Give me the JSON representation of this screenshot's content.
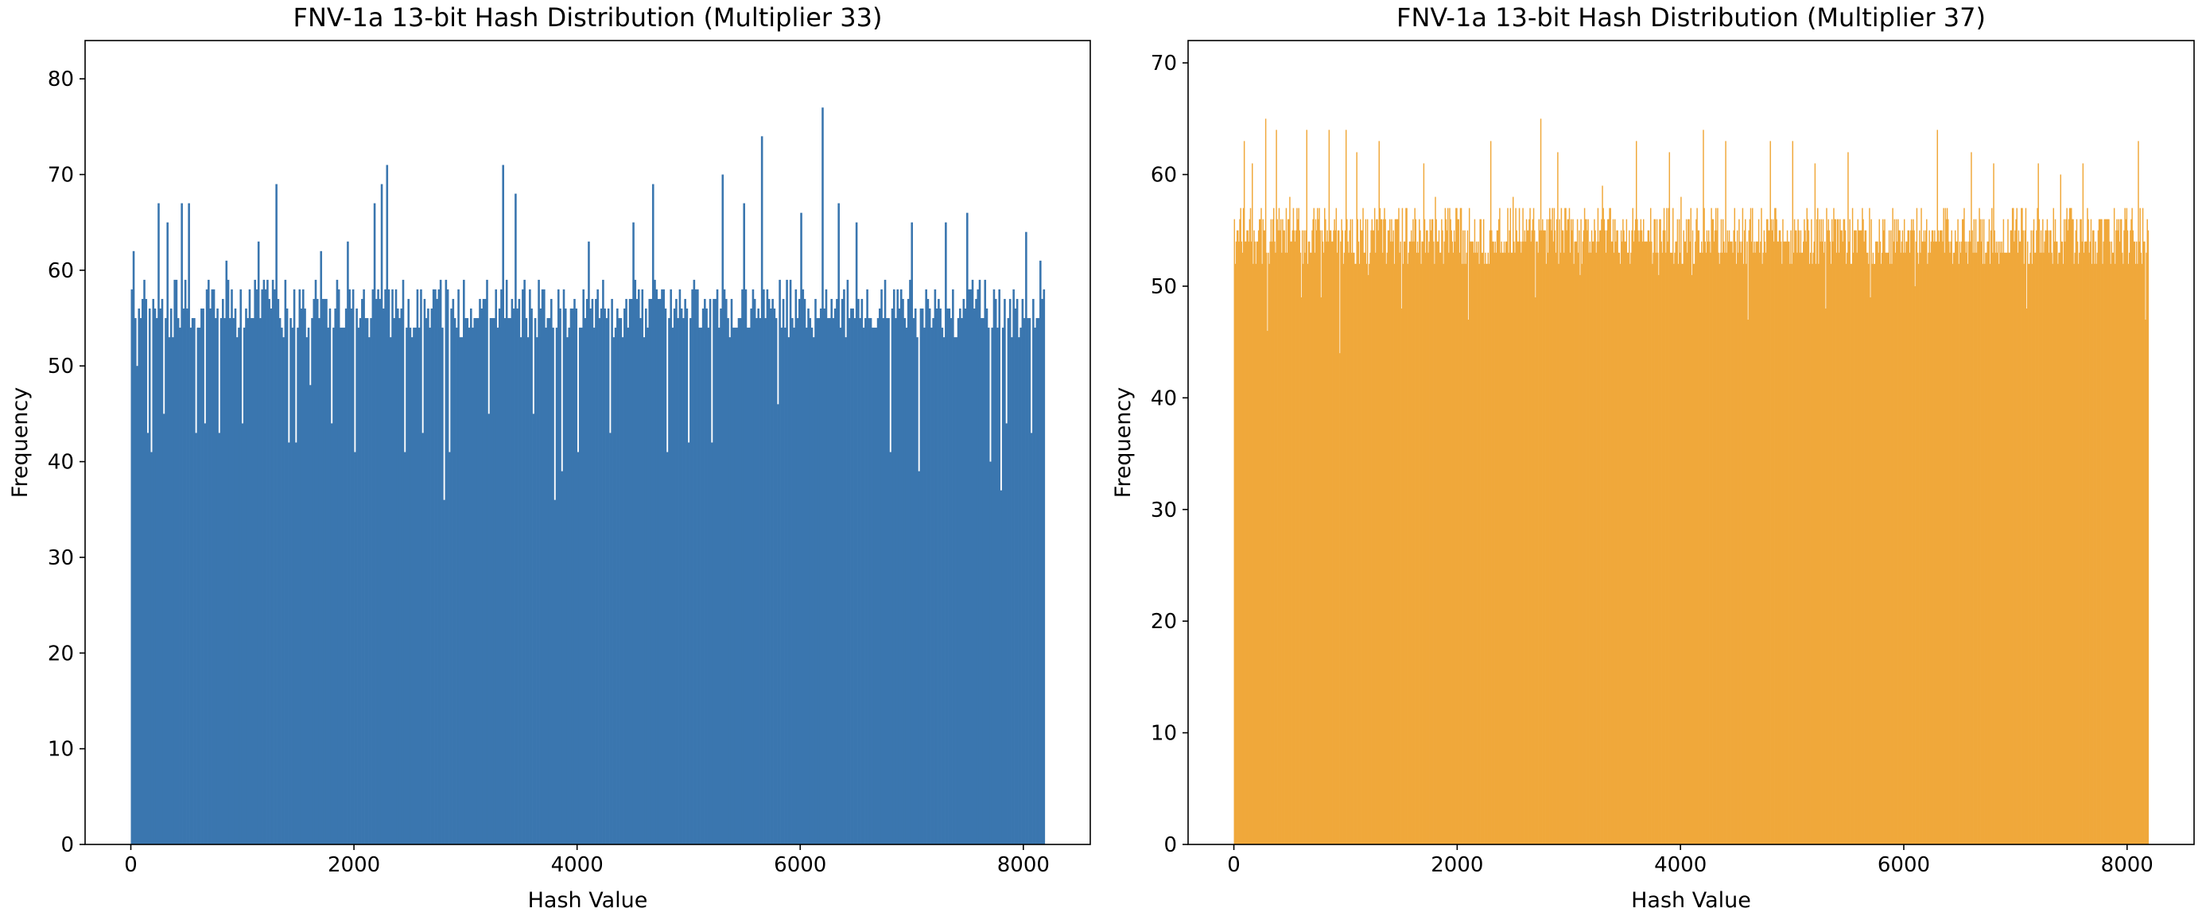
{
  "chart_data": [
    {
      "type": "bar",
      "title": "FNV-1a 13-bit Hash Distribution (Multiplier 33)",
      "xlabel": "Hash Value",
      "ylabel": "Frequency",
      "xlim": [
        -410,
        8600
      ],
      "ylim": [
        0,
        84
      ],
      "xticks": [
        0,
        2000,
        4000,
        6000,
        8000
      ],
      "yticks": [
        0,
        10,
        20,
        30,
        40,
        50,
        60,
        70,
        80
      ],
      "bin_range": [
        0,
        8191
      ],
      "bins": 512,
      "grid": false,
      "legend": false,
      "color": "#3a76af",
      "series": [
        {
          "baseline_range": [
            53,
            59
          ],
          "values_estimated": [
            {
              "x": 20,
              "y": 62
            },
            {
              "x": 60,
              "y": 50
            },
            {
              "x": 120,
              "y": 59
            },
            {
              "x": 150,
              "y": 43
            },
            {
              "x": 180,
              "y": 41
            },
            {
              "x": 240,
              "y": 67
            },
            {
              "x": 300,
              "y": 45
            },
            {
              "x": 330,
              "y": 65
            },
            {
              "x": 380,
              "y": 53
            },
            {
              "x": 460,
              "y": 67
            },
            {
              "x": 520,
              "y": 67
            },
            {
              "x": 580,
              "y": 43
            },
            {
              "x": 660,
              "y": 44
            },
            {
              "x": 720,
              "y": 58
            },
            {
              "x": 790,
              "y": 43
            },
            {
              "x": 860,
              "y": 61
            },
            {
              "x": 1000,
              "y": 44
            },
            {
              "x": 1140,
              "y": 63
            },
            {
              "x": 1300,
              "y": 69
            },
            {
              "x": 1420,
              "y": 42
            },
            {
              "x": 1480,
              "y": 42
            },
            {
              "x": 1600,
              "y": 48
            },
            {
              "x": 1700,
              "y": 62
            },
            {
              "x": 1800,
              "y": 44
            },
            {
              "x": 1940,
              "y": 63
            },
            {
              "x": 2000,
              "y": 41
            },
            {
              "x": 2180,
              "y": 67
            },
            {
              "x": 2250,
              "y": 69
            },
            {
              "x": 2300,
              "y": 71
            },
            {
              "x": 2450,
              "y": 41
            },
            {
              "x": 2620,
              "y": 43
            },
            {
              "x": 2800,
              "y": 36
            },
            {
              "x": 2850,
              "y": 41
            },
            {
              "x": 3000,
              "y": 55
            },
            {
              "x": 3200,
              "y": 45
            },
            {
              "x": 3330,
              "y": 71
            },
            {
              "x": 3450,
              "y": 68
            },
            {
              "x": 3600,
              "y": 45
            },
            {
              "x": 3800,
              "y": 36
            },
            {
              "x": 3860,
              "y": 39
            },
            {
              "x": 4000,
              "y": 41
            },
            {
              "x": 4100,
              "y": 63
            },
            {
              "x": 4300,
              "y": 43
            },
            {
              "x": 4500,
              "y": 65
            },
            {
              "x": 4680,
              "y": 69
            },
            {
              "x": 4800,
              "y": 41
            },
            {
              "x": 5000,
              "y": 42
            },
            {
              "x": 5200,
              "y": 42
            },
            {
              "x": 5300,
              "y": 70
            },
            {
              "x": 5500,
              "y": 67
            },
            {
              "x": 5660,
              "y": 74
            },
            {
              "x": 5800,
              "y": 46
            },
            {
              "x": 6000,
              "y": 66
            },
            {
              "x": 6200,
              "y": 77
            },
            {
              "x": 6350,
              "y": 67
            },
            {
              "x": 6500,
              "y": 65
            },
            {
              "x": 6800,
              "y": 41
            },
            {
              "x": 7000,
              "y": 65
            },
            {
              "x": 7070,
              "y": 39
            },
            {
              "x": 7300,
              "y": 65
            },
            {
              "x": 7500,
              "y": 66
            },
            {
              "x": 7700,
              "y": 40
            },
            {
              "x": 7800,
              "y": 37
            },
            {
              "x": 7850,
              "y": 44
            },
            {
              "x": 8030,
              "y": 64
            },
            {
              "x": 8070,
              "y": 43
            },
            {
              "x": 8150,
              "y": 61
            }
          ]
        }
      ]
    },
    {
      "type": "bar",
      "title": "FNV-1a 13-bit Hash Distribution (Multiplier 37)",
      "xlabel": "Hash Value",
      "ylabel": "Frequency",
      "xlim": [
        -410,
        8600
      ],
      "ylim": [
        0,
        72
      ],
      "xticks": [
        0,
        2000,
        4000,
        6000,
        8000
      ],
      "yticks": [
        0,
        10,
        20,
        30,
        40,
        50,
        60,
        70
      ],
      "bin_range": [
        0,
        8191
      ],
      "bins": 1024,
      "grid": false,
      "legend": false,
      "color": "#f0a83a",
      "series": [
        {
          "baseline_range": [
            52,
            57
          ],
          "values_estimated": [
            {
              "x": 80,
              "y": 57
            },
            {
              "x": 90,
              "y": 63
            },
            {
              "x": 160,
              "y": 61
            },
            {
              "x": 280,
              "y": 65
            },
            {
              "x": 300,
              "y": 46
            },
            {
              "x": 380,
              "y": 64
            },
            {
              "x": 500,
              "y": 58
            },
            {
              "x": 600,
              "y": 49
            },
            {
              "x": 650,
              "y": 64
            },
            {
              "x": 780,
              "y": 49
            },
            {
              "x": 850,
              "y": 64
            },
            {
              "x": 950,
              "y": 44
            },
            {
              "x": 1000,
              "y": 64
            },
            {
              "x": 1100,
              "y": 62
            },
            {
              "x": 1200,
              "y": 51
            },
            {
              "x": 1300,
              "y": 63
            },
            {
              "x": 1500,
              "y": 48
            },
            {
              "x": 1700,
              "y": 61
            },
            {
              "x": 1800,
              "y": 58
            },
            {
              "x": 2100,
              "y": 47
            },
            {
              "x": 2300,
              "y": 63
            },
            {
              "x": 2500,
              "y": 58
            },
            {
              "x": 2700,
              "y": 49
            },
            {
              "x": 2750,
              "y": 65
            },
            {
              "x": 2900,
              "y": 62
            },
            {
              "x": 3100,
              "y": 51
            },
            {
              "x": 3300,
              "y": 59
            },
            {
              "x": 3600,
              "y": 63
            },
            {
              "x": 3800,
              "y": 51
            },
            {
              "x": 3900,
              "y": 62
            },
            {
              "x": 4000,
              "y": 58
            },
            {
              "x": 4100,
              "y": 51
            },
            {
              "x": 4200,
              "y": 64
            },
            {
              "x": 4400,
              "y": 63
            },
            {
              "x": 4600,
              "y": 47
            },
            {
              "x": 4800,
              "y": 63
            },
            {
              "x": 5000,
              "y": 63
            },
            {
              "x": 5200,
              "y": 61
            },
            {
              "x": 5300,
              "y": 48
            },
            {
              "x": 5500,
              "y": 62
            },
            {
              "x": 5700,
              "y": 49
            },
            {
              "x": 5900,
              "y": 57
            },
            {
              "x": 6100,
              "y": 50
            },
            {
              "x": 6300,
              "y": 64
            },
            {
              "x": 6600,
              "y": 62
            },
            {
              "x": 6800,
              "y": 61
            },
            {
              "x": 7100,
              "y": 48
            },
            {
              "x": 7200,
              "y": 61
            },
            {
              "x": 7400,
              "y": 60
            },
            {
              "x": 7600,
              "y": 61
            },
            {
              "x": 7900,
              "y": 55
            },
            {
              "x": 8100,
              "y": 63
            },
            {
              "x": 8160,
              "y": 47
            }
          ]
        }
      ]
    }
  ]
}
